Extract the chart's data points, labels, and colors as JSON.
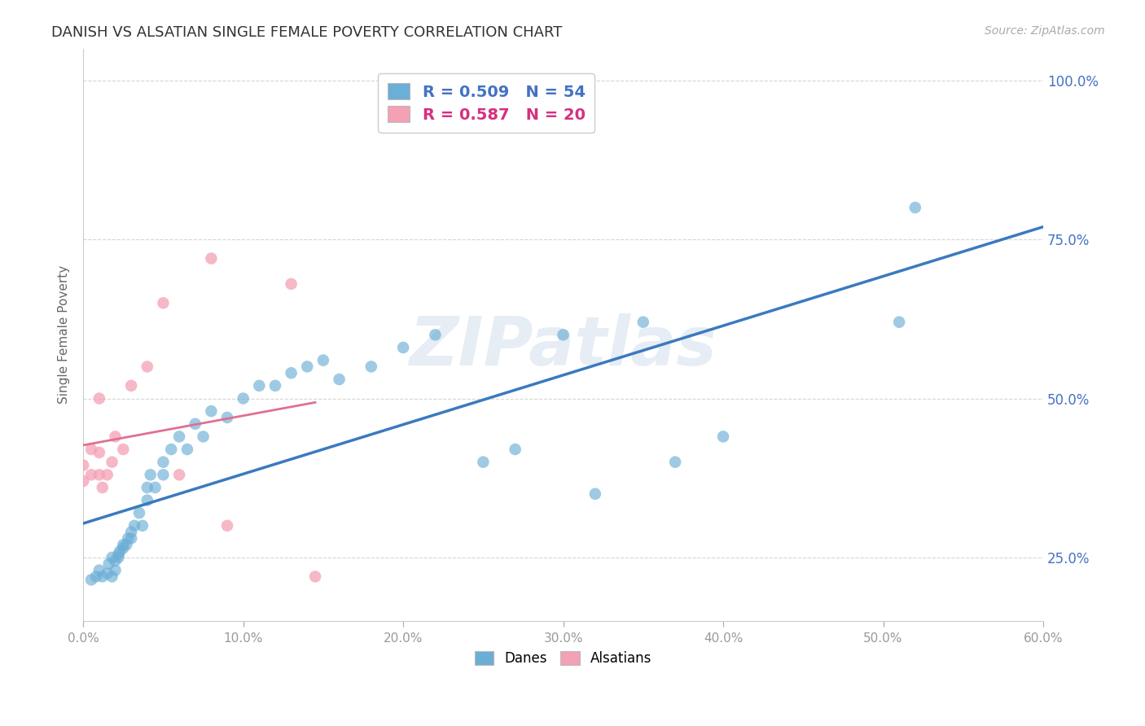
{
  "title": "DANISH VS ALSATIAN SINGLE FEMALE POVERTY CORRELATION CHART",
  "source": "Source: ZipAtlas.com",
  "xlabel": "",
  "ylabel": "Single Female Poverty",
  "xlim": [
    0.0,
    0.6
  ],
  "ylim": [
    0.15,
    1.05
  ],
  "ytick_labels": [
    "25.0%",
    "50.0%",
    "75.0%",
    "100.0%"
  ],
  "ytick_values": [
    0.25,
    0.5,
    0.75,
    1.0
  ],
  "xtick_labels": [
    "0.0%",
    "10.0%",
    "20.0%",
    "30.0%",
    "40.0%",
    "50.0%",
    "60.0%"
  ],
  "xtick_values": [
    0.0,
    0.1,
    0.2,
    0.3,
    0.4,
    0.5,
    0.6
  ],
  "watermark": "ZIPatlas",
  "danes_color": "#6baed6",
  "alsatians_color": "#f4a0b5",
  "danes_line_color": "#3a7abf",
  "alsatians_line_color": "#e07090",
  "danes_R": 0.509,
  "danes_N": 54,
  "alsatians_R": 0.587,
  "alsatians_N": 20,
  "background_color": "#ffffff",
  "grid_color": "#cccccc",
  "danes_x": [
    0.005,
    0.008,
    0.01,
    0.012,
    0.015,
    0.016,
    0.018,
    0.018,
    0.02,
    0.02,
    0.022,
    0.022,
    0.023,
    0.025,
    0.025,
    0.027,
    0.028,
    0.03,
    0.03,
    0.032,
    0.035,
    0.037,
    0.04,
    0.04,
    0.042,
    0.045,
    0.05,
    0.05,
    0.055,
    0.06,
    0.065,
    0.07,
    0.075,
    0.08,
    0.09,
    0.1,
    0.11,
    0.12,
    0.13,
    0.14,
    0.15,
    0.16,
    0.18,
    0.2,
    0.22,
    0.25,
    0.27,
    0.3,
    0.32,
    0.35,
    0.37,
    0.4,
    0.51,
    0.52
  ],
  "danes_y": [
    0.215,
    0.22,
    0.23,
    0.22,
    0.225,
    0.24,
    0.22,
    0.25,
    0.23,
    0.245,
    0.25,
    0.255,
    0.26,
    0.265,
    0.27,
    0.27,
    0.28,
    0.28,
    0.29,
    0.3,
    0.32,
    0.3,
    0.34,
    0.36,
    0.38,
    0.36,
    0.4,
    0.38,
    0.42,
    0.44,
    0.42,
    0.46,
    0.44,
    0.48,
    0.47,
    0.5,
    0.52,
    0.52,
    0.54,
    0.55,
    0.56,
    0.53,
    0.55,
    0.58,
    0.6,
    0.4,
    0.42,
    0.6,
    0.35,
    0.62,
    0.4,
    0.44,
    0.62,
    0.8
  ],
  "alsatians_x": [
    0.0,
    0.0,
    0.005,
    0.005,
    0.01,
    0.01,
    0.01,
    0.012,
    0.015,
    0.018,
    0.02,
    0.025,
    0.03,
    0.04,
    0.05,
    0.06,
    0.08,
    0.09,
    0.13,
    0.145
  ],
  "alsatians_y": [
    0.37,
    0.395,
    0.38,
    0.42,
    0.38,
    0.415,
    0.5,
    0.36,
    0.38,
    0.4,
    0.44,
    0.42,
    0.52,
    0.55,
    0.65,
    0.38,
    0.72,
    0.3,
    0.68,
    0.22
  ]
}
